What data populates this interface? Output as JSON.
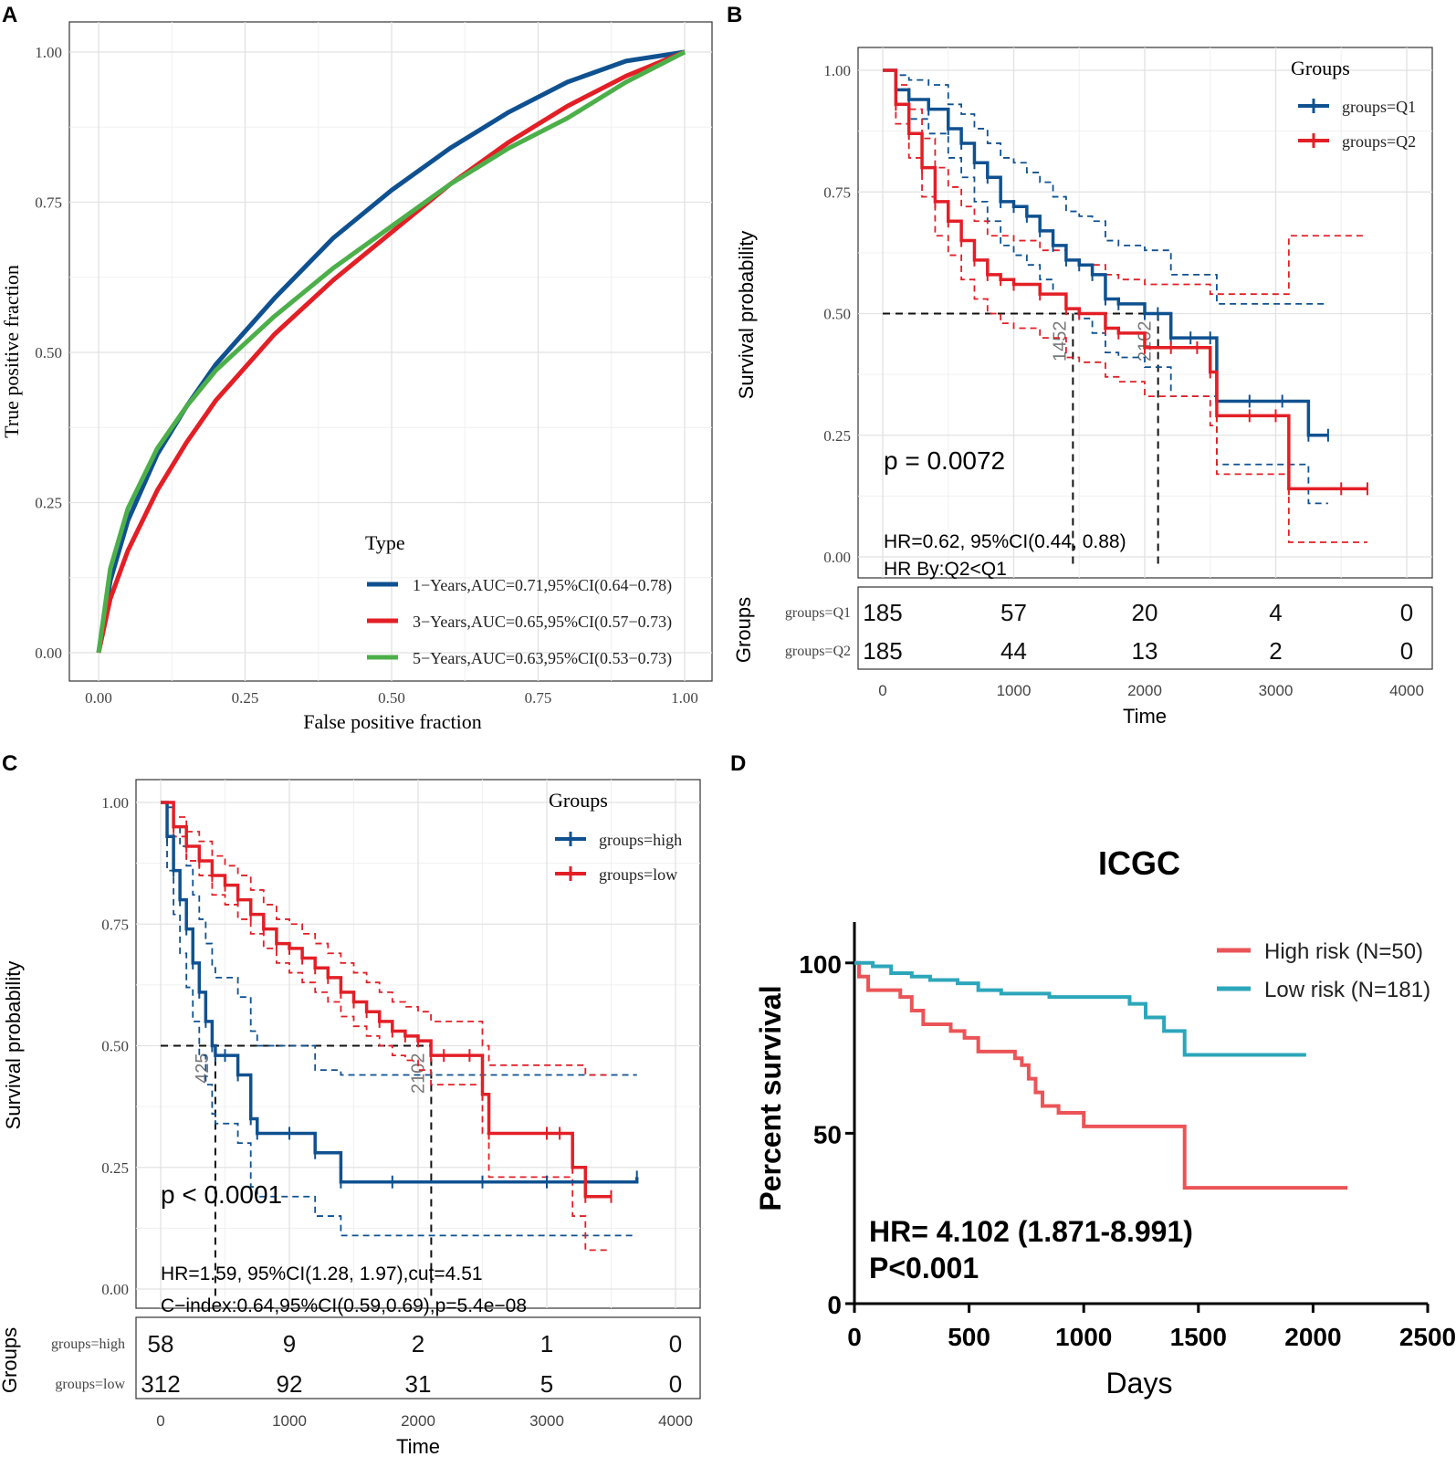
{
  "panels": {
    "A": {
      "letter": "A",
      "chart_data": {
        "type": "line",
        "title": "",
        "xlabel": "False positive fraction",
        "ylabel": "True positive fraction",
        "xlim": [
          0,
          1
        ],
        "ylim": [
          0,
          1
        ],
        "xticks": [
          "0.00",
          "0.25",
          "0.50",
          "0.75",
          "1.00"
        ],
        "yticks": [
          "0.00",
          "0.25",
          "0.50",
          "0.75",
          "1.00"
        ],
        "legend_title": "Type",
        "legend_position": "bottom-right",
        "series": [
          {
            "name": "1−Years,AUC=0.71,95%CI(0.64−0.78)",
            "color": "#0F5190",
            "x": [
              0,
              0.02,
              0.05,
              0.1,
              0.15,
              0.2,
              0.3,
              0.4,
              0.5,
              0.6,
              0.7,
              0.8,
              0.9,
              1
            ],
            "y": [
              0,
              0.12,
              0.22,
              0.33,
              0.41,
              0.48,
              0.59,
              0.69,
              0.77,
              0.84,
              0.9,
              0.95,
              0.985,
              1
            ]
          },
          {
            "name": "3−Years,AUC=0.65,95%CI(0.57−0.73)",
            "color": "#E31F26",
            "x": [
              0,
              0.02,
              0.05,
              0.1,
              0.15,
              0.2,
              0.3,
              0.4,
              0.5,
              0.6,
              0.7,
              0.8,
              0.9,
              1
            ],
            "y": [
              0,
              0.09,
              0.17,
              0.27,
              0.35,
              0.42,
              0.53,
              0.62,
              0.7,
              0.78,
              0.85,
              0.91,
              0.96,
              1
            ]
          },
          {
            "name": "5−Years,AUC=0.63,95%CI(0.53−0.73)",
            "color": "#4DAF4A",
            "x": [
              0,
              0.02,
              0.05,
              0.1,
              0.15,
              0.2,
              0.3,
              0.4,
              0.5,
              0.6,
              0.7,
              0.8,
              0.9,
              1
            ],
            "y": [
              0,
              0.14,
              0.24,
              0.34,
              0.41,
              0.47,
              0.56,
              0.64,
              0.71,
              0.78,
              0.84,
              0.89,
              0.95,
              1
            ]
          }
        ]
      }
    },
    "B": {
      "letter": "B",
      "chart_data": {
        "type": "line",
        "subtype": "kaplan-meier",
        "xlabel": "Time",
        "ylabel": "Survival probability",
        "xlim": [
          0,
          4000
        ],
        "ylim": [
          0,
          1
        ],
        "xticks": [
          "0",
          "1000",
          "2000",
          "3000",
          "4000"
        ],
        "yticks": [
          "0.00",
          "0.25",
          "0.50",
          "0.75",
          "1.00"
        ],
        "legend_title": "Groups",
        "legend_position": "top-right",
        "pvalue_text": "p = 0.0072",
        "hr_text": "HR=0.62, 95%CI(0.44, 0.88)",
        "hr_by_text": "HR By:Q2<Q1",
        "median_labels": [
          {
            "time": 1452,
            "label": "1452"
          },
          {
            "time": 2102,
            "label": "2102"
          }
        ],
        "series": [
          {
            "name": "groups=Q1",
            "color": "#0F5190",
            "x": [
              0,
              100,
              200,
              350,
              500,
              600,
              700,
              800,
              900,
              1000,
              1100,
              1200,
              1300,
              1400,
              1500,
              1600,
              1700,
              1800,
              2000,
              2100,
              2200,
              2350,
              2500,
              2550,
              2800,
              3050,
              3250,
              3400
            ],
            "y": [
              1.0,
              0.96,
              0.94,
              0.92,
              0.88,
              0.85,
              0.81,
              0.78,
              0.73,
              0.72,
              0.7,
              0.67,
              0.64,
              0.61,
              0.6,
              0.58,
              0.53,
              0.52,
              0.5,
              0.5,
              0.45,
              0.45,
              0.45,
              0.32,
              0.32,
              0.32,
              0.25,
              0.25
            ],
            "lower": [
              1.0,
              0.93,
              0.9,
              0.87,
              0.82,
              0.78,
              0.73,
              0.69,
              0.64,
              0.62,
              0.6,
              0.57,
              0.54,
              0.51,
              0.49,
              0.46,
              0.42,
              0.41,
              0.39,
              0.39,
              0.33,
              0.33,
              0.33,
              0.19,
              0.19,
              0.19,
              0.11,
              0.11
            ],
            "upper": [
              1.0,
              0.99,
              0.98,
              0.97,
              0.93,
              0.91,
              0.88,
              0.85,
              0.82,
              0.81,
              0.79,
              0.77,
              0.74,
              0.71,
              0.7,
              0.69,
              0.65,
              0.64,
              0.63,
              0.63,
              0.58,
              0.58,
              0.58,
              0.52,
              0.52,
              0.52,
              0.52,
              0.52
            ],
            "risk_table": [
              185,
              57,
              20,
              4,
              0
            ]
          },
          {
            "name": "groups=Q2",
            "color": "#E31F26",
            "x": [
              0,
              100,
              200,
              300,
              400,
              500,
              600,
              700,
              800,
              900,
              1000,
              1200,
              1400,
              1500,
              1700,
              1800,
              2000,
              2200,
              2400,
              2500,
              2550,
              2800,
              3000,
              3100,
              3500,
              3700
            ],
            "y": [
              1.0,
              0.93,
              0.87,
              0.8,
              0.73,
              0.69,
              0.65,
              0.61,
              0.58,
              0.57,
              0.56,
              0.54,
              0.51,
              0.5,
              0.47,
              0.46,
              0.43,
              0.43,
              0.43,
              0.38,
              0.29,
              0.29,
              0.29,
              0.14,
              0.14,
              0.14
            ],
            "lower": [
              1.0,
              0.89,
              0.82,
              0.74,
              0.66,
              0.62,
              0.57,
              0.53,
              0.5,
              0.48,
              0.47,
              0.45,
              0.41,
              0.4,
              0.37,
              0.36,
              0.33,
              0.33,
              0.33,
              0.27,
              0.17,
              0.17,
              0.17,
              0.03,
              0.03,
              0.03
            ],
            "upper": [
              1.0,
              0.97,
              0.92,
              0.86,
              0.8,
              0.76,
              0.72,
              0.69,
              0.66,
              0.66,
              0.65,
              0.63,
              0.61,
              0.6,
              0.58,
              0.57,
              0.56,
              0.56,
              0.56,
              0.54,
              0.54,
              0.54,
              0.54,
              0.66,
              0.66,
              0.66
            ],
            "risk_table": [
              185,
              44,
              13,
              2,
              0
            ]
          }
        ],
        "risk_table_title": "Groups"
      }
    },
    "C": {
      "letter": "C",
      "chart_data": {
        "type": "line",
        "subtype": "kaplan-meier",
        "xlabel": "Time",
        "ylabel": "Survival probability",
        "xlim": [
          0,
          4000
        ],
        "ylim": [
          0,
          1
        ],
        "xticks": [
          "0",
          "1000",
          "2000",
          "3000",
          "4000"
        ],
        "yticks": [
          "0.00",
          "0.25",
          "0.50",
          "0.75",
          "1.00"
        ],
        "legend_title": "Groups",
        "legend_position": "top-right",
        "pvalue_text": "p < 0.0001",
        "hr_text": "HR=1.59, 95%CI(1.28, 1.97),cut=4.51",
        "cindex_text": "C−index:0.64,95%CI(0.59,0.69),p=5.4e−08",
        "median_labels": [
          {
            "time": 425,
            "label": "425"
          },
          {
            "time": 2102,
            "label": "2102"
          }
        ],
        "series": [
          {
            "name": "groups=high",
            "color": "#0F5190",
            "x": [
              0,
              50,
              100,
              150,
              200,
              250,
              300,
              350,
              400,
              425,
              500,
              600,
              700,
              750,
              1000,
              1200,
              1400,
              1800,
              2500,
              3000,
              3700
            ],
            "y": [
              1.0,
              0.93,
              0.86,
              0.8,
              0.74,
              0.67,
              0.61,
              0.55,
              0.5,
              0.48,
              0.48,
              0.44,
              0.35,
              0.32,
              0.32,
              0.28,
              0.22,
              0.22,
              0.22,
              0.22,
              0.23
            ],
            "lower": [
              1.0,
              0.86,
              0.77,
              0.69,
              0.62,
              0.55,
              0.48,
              0.42,
              0.36,
              0.34,
              0.34,
              0.3,
              0.21,
              0.19,
              0.19,
              0.15,
              0.11,
              0.11,
              0.11,
              0.11,
              0.11
            ],
            "upper": [
              1.0,
              0.99,
              0.95,
              0.91,
              0.87,
              0.81,
              0.76,
              0.71,
              0.66,
              0.64,
              0.64,
              0.6,
              0.53,
              0.5,
              0.5,
              0.45,
              0.44,
              0.44,
              0.44,
              0.44,
              0.44
            ],
            "risk_table": [
              58,
              9,
              2,
              1,
              0
            ]
          },
          {
            "name": "groups=low",
            "color": "#E31F26",
            "x": [
              0,
              100,
              200,
              300,
              400,
              500,
              600,
              700,
              800,
              900,
              1000,
              1100,
              1200,
              1300,
              1400,
              1500,
              1600,
              1700,
              1800,
              1900,
              2000,
              2100,
              2200,
              2400,
              2500,
              2550,
              3000,
              3100,
              3200,
              3300,
              3500
            ],
            "y": [
              1.0,
              0.95,
              0.91,
              0.88,
              0.85,
              0.83,
              0.8,
              0.77,
              0.74,
              0.71,
              0.7,
              0.68,
              0.66,
              0.64,
              0.61,
              0.59,
              0.57,
              0.55,
              0.53,
              0.52,
              0.51,
              0.48,
              0.48,
              0.48,
              0.4,
              0.32,
              0.32,
              0.32,
              0.25,
              0.19,
              0.19
            ],
            "lower": [
              1.0,
              0.93,
              0.88,
              0.85,
              0.81,
              0.79,
              0.76,
              0.73,
              0.7,
              0.67,
              0.65,
              0.63,
              0.61,
              0.59,
              0.56,
              0.54,
              0.52,
              0.5,
              0.48,
              0.47,
              0.45,
              0.42,
              0.42,
              0.42,
              0.32,
              0.23,
              0.23,
              0.23,
              0.15,
              0.08,
              0.08
            ],
            "upper": [
              1.0,
              0.97,
              0.94,
              0.92,
              0.89,
              0.87,
              0.85,
              0.82,
              0.79,
              0.76,
              0.75,
              0.73,
              0.71,
              0.69,
              0.67,
              0.65,
              0.63,
              0.61,
              0.59,
              0.58,
              0.57,
              0.55,
              0.55,
              0.55,
              0.5,
              0.46,
              0.46,
              0.46,
              0.46,
              0.44,
              0.44
            ],
            "risk_table": [
              312,
              92,
              31,
              5,
              0
            ]
          }
        ],
        "risk_table_title": "Groups"
      }
    },
    "D": {
      "letter": "D",
      "chart_data": {
        "type": "line",
        "subtype": "kaplan-meier",
        "title": "ICGC",
        "xlabel": "Days",
        "ylabel": "Percent survival",
        "xlim": [
          0,
          2500
        ],
        "ylim": [
          0,
          110
        ],
        "xticks": [
          "0",
          "500",
          "1000",
          "1500",
          "2000",
          "2500"
        ],
        "yticks": [
          "0",
          "50",
          "100"
        ],
        "legend_position": "top-right",
        "hr_text": "HR= 4.102 (1.871-8.991)",
        "p_text": "P<0.001",
        "series": [
          {
            "name": "High risk (N=50)",
            "color": "#EB5457",
            "x": [
              0,
              20,
              60,
              200,
              250,
              300,
              420,
              480,
              540,
              700,
              730,
              760,
              790,
              820,
              890,
              1000,
              1150,
              1250,
              1440,
              2150
            ],
            "y": [
              100,
              96,
              92,
              90,
              86,
              82,
              80,
              78,
              74,
              72,
              70,
              66,
              62,
              58,
              56,
              52,
              52,
              52,
              34,
              34
            ]
          },
          {
            "name": "Low risk (N=181)",
            "color": "#2CA6BA",
            "x": [
              0,
              80,
              160,
              250,
              330,
              450,
              540,
              640,
              760,
              850,
              1000,
              1100,
              1200,
              1270,
              1350,
              1440,
              1970
            ],
            "y": [
              100,
              99,
              97,
              96,
              95,
              94,
              92,
              91,
              91,
              90,
              90,
              90,
              88,
              84,
              80,
              73,
              73
            ]
          }
        ]
      }
    }
  }
}
